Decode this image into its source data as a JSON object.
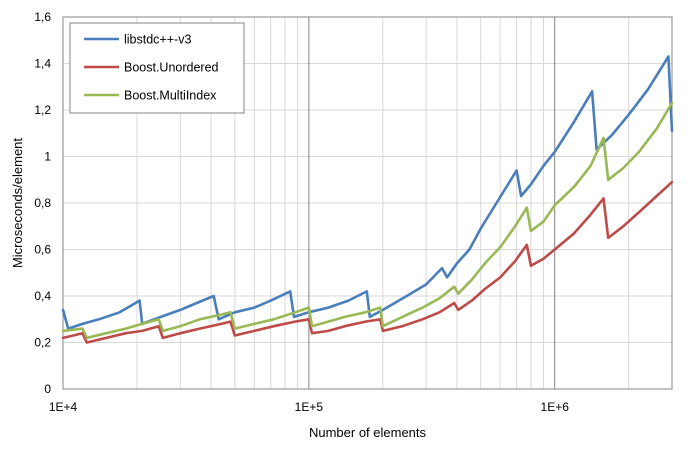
{
  "chart_data": {
    "type": "line",
    "title": "",
    "xlabel": "Number of elements",
    "ylabel": "Microseconds/element",
    "x_scale": "log",
    "xlim": [
      10000,
      3000000
    ],
    "ylim": [
      0,
      1.6
    ],
    "y_ticks": [
      "0",
      "0,2",
      "0,4",
      "0,6",
      "0,8",
      "1",
      "1,2",
      "1,4",
      "1,6"
    ],
    "x_ticks": [
      "1E+4",
      "1E+5",
      "1E+6"
    ],
    "grid": true,
    "legend_position": "top-left",
    "series": [
      {
        "name": "libstdc++-v3",
        "color": "#4a7ebb",
        "points": [
          [
            10000,
            0.34
          ],
          [
            10500,
            0.26
          ],
          [
            12000,
            0.28
          ],
          [
            14000,
            0.3
          ],
          [
            17000,
            0.33
          ],
          [
            20500,
            0.38
          ],
          [
            21000,
            0.28
          ],
          [
            25000,
            0.31
          ],
          [
            30000,
            0.34
          ],
          [
            35000,
            0.37
          ],
          [
            41000,
            0.4
          ],
          [
            43000,
            0.3
          ],
          [
            50000,
            0.33
          ],
          [
            60000,
            0.35
          ],
          [
            70000,
            0.38
          ],
          [
            84000,
            0.42
          ],
          [
            87000,
            0.31
          ],
          [
            100000,
            0.33
          ],
          [
            120000,
            0.35
          ],
          [
            145000,
            0.38
          ],
          [
            172000,
            0.42
          ],
          [
            177000,
            0.31
          ],
          [
            200000,
            0.34
          ],
          [
            250000,
            0.4
          ],
          [
            300000,
            0.45
          ],
          [
            348000,
            0.52
          ],
          [
            365000,
            0.48
          ],
          [
            400000,
            0.54
          ],
          [
            450000,
            0.6
          ],
          [
            500000,
            0.69
          ],
          [
            580000,
            0.8
          ],
          [
            700000,
            0.94
          ],
          [
            730000,
            0.83
          ],
          [
            800000,
            0.88
          ],
          [
            900000,
            0.96
          ],
          [
            1000000,
            1.02
          ],
          [
            1200000,
            1.15
          ],
          [
            1420000,
            1.28
          ],
          [
            1480000,
            1.03
          ],
          [
            1700000,
            1.09
          ],
          [
            2000000,
            1.18
          ],
          [
            2400000,
            1.29
          ],
          [
            2900000,
            1.43
          ],
          [
            3000000,
            1.11
          ]
        ]
      },
      {
        "name": "Boost.Unordered",
        "color": "#be4b48",
        "points": [
          [
            10000,
            0.22
          ],
          [
            11000,
            0.23
          ],
          [
            12000,
            0.24
          ],
          [
            12500,
            0.2
          ],
          [
            15000,
            0.22
          ],
          [
            18000,
            0.24
          ],
          [
            21000,
            0.25
          ],
          [
            24500,
            0.27
          ],
          [
            25500,
            0.22
          ],
          [
            30000,
            0.24
          ],
          [
            36000,
            0.26
          ],
          [
            44000,
            0.28
          ],
          [
            48000,
            0.29
          ],
          [
            50000,
            0.23
          ],
          [
            60000,
            0.25
          ],
          [
            72000,
            0.27
          ],
          [
            88000,
            0.29
          ],
          [
            100000,
            0.3
          ],
          [
            103000,
            0.24
          ],
          [
            120000,
            0.25
          ],
          [
            140000,
            0.27
          ],
          [
            170000,
            0.29
          ],
          [
            195000,
            0.3
          ],
          [
            200000,
            0.25
          ],
          [
            240000,
            0.27
          ],
          [
            290000,
            0.3
          ],
          [
            340000,
            0.33
          ],
          [
            390000,
            0.37
          ],
          [
            405000,
            0.34
          ],
          [
            460000,
            0.38
          ],
          [
            520000,
            0.43
          ],
          [
            600000,
            0.48
          ],
          [
            690000,
            0.55
          ],
          [
            770000,
            0.62
          ],
          [
            800000,
            0.53
          ],
          [
            900000,
            0.56
          ],
          [
            1000000,
            0.6
          ],
          [
            1200000,
            0.67
          ],
          [
            1400000,
            0.75
          ],
          [
            1580000,
            0.82
          ],
          [
            1650000,
            0.65
          ],
          [
            1900000,
            0.7
          ],
          [
            2200000,
            0.76
          ],
          [
            2600000,
            0.83
          ],
          [
            3000000,
            0.89
          ]
        ]
      },
      {
        "name": "Boost.MultiIndex",
        "color": "#98b954",
        "points": [
          [
            10000,
            0.25
          ],
          [
            11000,
            0.255
          ],
          [
            12000,
            0.26
          ],
          [
            12500,
            0.22
          ],
          [
            15000,
            0.24
          ],
          [
            18000,
            0.26
          ],
          [
            21000,
            0.28
          ],
          [
            24500,
            0.3
          ],
          [
            25500,
            0.25
          ],
          [
            30000,
            0.27
          ],
          [
            36000,
            0.3
          ],
          [
            44000,
            0.32
          ],
          [
            48000,
            0.33
          ],
          [
            50000,
            0.26
          ],
          [
            60000,
            0.28
          ],
          [
            72000,
            0.3
          ],
          [
            88000,
            0.33
          ],
          [
            100000,
            0.35
          ],
          [
            103000,
            0.27
          ],
          [
            120000,
            0.29
          ],
          [
            140000,
            0.31
          ],
          [
            170000,
            0.33
          ],
          [
            195000,
            0.35
          ],
          [
            200000,
            0.27
          ],
          [
            240000,
            0.31
          ],
          [
            290000,
            0.35
          ],
          [
            340000,
            0.39
          ],
          [
            390000,
            0.44
          ],
          [
            405000,
            0.41
          ],
          [
            460000,
            0.47
          ],
          [
            520000,
            0.54
          ],
          [
            600000,
            0.61
          ],
          [
            690000,
            0.7
          ],
          [
            770000,
            0.78
          ],
          [
            800000,
            0.68
          ],
          [
            900000,
            0.72
          ],
          [
            1000000,
            0.79
          ],
          [
            1200000,
            0.87
          ],
          [
            1400000,
            0.96
          ],
          [
            1580000,
            1.08
          ],
          [
            1650000,
            0.9
          ],
          [
            1900000,
            0.95
          ],
          [
            2200000,
            1.02
          ],
          [
            2600000,
            1.12
          ],
          [
            3000000,
            1.23
          ]
        ]
      }
    ]
  }
}
